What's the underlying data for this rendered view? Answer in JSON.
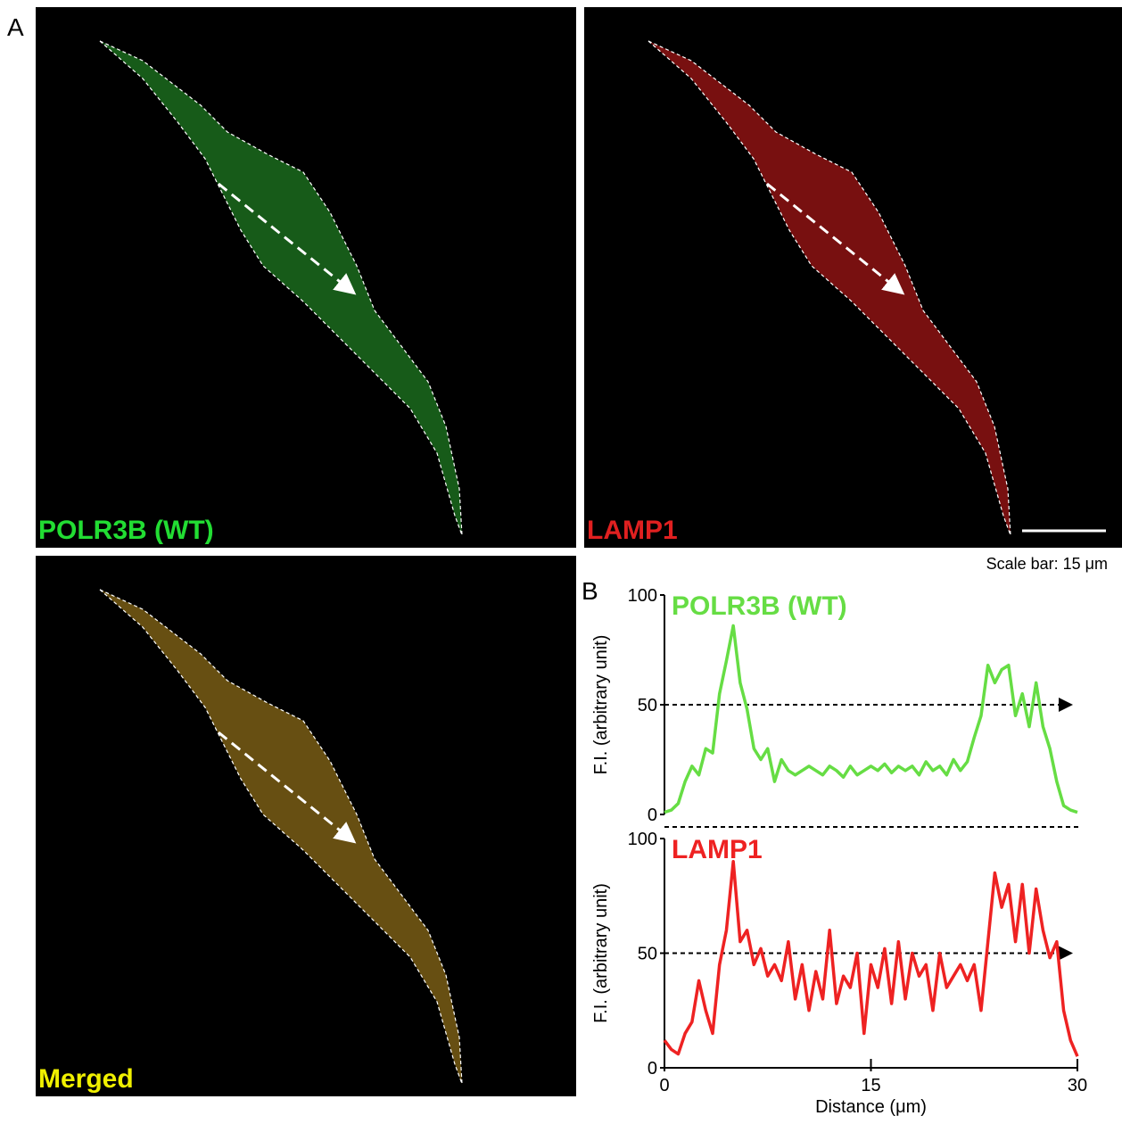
{
  "figure": {
    "panel_a": "A",
    "panel_b": "B",
    "images": [
      {
        "label": "POLR3B (WT)",
        "color": "#22dd33",
        "fill": "#1f7a22"
      },
      {
        "label": "LAMP1",
        "color": "#e02020",
        "fill": "#a01515"
      },
      {
        "label": "Merged",
        "color": "#f0f000",
        "fill": "#8a6a18"
      }
    ],
    "scale_bar": "Scale bar: 15 μm"
  },
  "chart_data": [
    {
      "type": "line",
      "ylabel": "F.I. (arbitrary unit)",
      "x": [
        0,
        0.5,
        1,
        1.5,
        2,
        2.5,
        3,
        3.5,
        4,
        4.5,
        5,
        5.5,
        6,
        6.5,
        7,
        7.5,
        8,
        8.5,
        9,
        9.5,
        10,
        10.5,
        11,
        11.5,
        12,
        12.5,
        13,
        13.5,
        14,
        14.5,
        15,
        15.5,
        16,
        16.5,
        17,
        17.5,
        18,
        18.5,
        19,
        19.5,
        20,
        20.5,
        21,
        21.5,
        22,
        22.5,
        23,
        23.5,
        24,
        24.5,
        25,
        25.5,
        26,
        26.5,
        27,
        27.5,
        28,
        28.5,
        29,
        29.5,
        30
      ],
      "series": [
        {
          "name": "POLR3B (WT)",
          "color": "#66dd44",
          "values": [
            1,
            2,
            5,
            15,
            22,
            18,
            30,
            28,
            55,
            70,
            86,
            60,
            48,
            30,
            25,
            30,
            15,
            25,
            20,
            18,
            20,
            22,
            20,
            18,
            22,
            20,
            17,
            22,
            18,
            20,
            22,
            20,
            23,
            19,
            22,
            20,
            22,
            18,
            24,
            20,
            22,
            18,
            25,
            20,
            24,
            35,
            45,
            68,
            60,
            66,
            68,
            45,
            55,
            40,
            60,
            40,
            30,
            15,
            4,
            2,
            1
          ]
        }
      ],
      "xlim": [
        0,
        30
      ],
      "ylim": [
        0,
        100
      ],
      "yticks": [
        0,
        50,
        100
      ],
      "reference_line": 50
    },
    {
      "type": "line",
      "ylabel": "F.I. (arbitrary unit)",
      "xlabel": "Distance (μm)",
      "x": [
        0,
        0.5,
        1,
        1.5,
        2,
        2.5,
        3,
        3.5,
        4,
        4.5,
        5,
        5.5,
        6,
        6.5,
        7,
        7.5,
        8,
        8.5,
        9,
        9.5,
        10,
        10.5,
        11,
        11.5,
        12,
        12.5,
        13,
        13.5,
        14,
        14.5,
        15,
        15.5,
        16,
        16.5,
        17,
        17.5,
        18,
        18.5,
        19,
        19.5,
        20,
        20.5,
        21,
        21.5,
        22,
        22.5,
        23,
        23.5,
        24,
        24.5,
        25,
        25.5,
        26,
        26.5,
        27,
        27.5,
        28,
        28.5,
        29,
        29.5,
        30
      ],
      "series": [
        {
          "name": "LAMP1",
          "color": "#ee2222",
          "values": [
            12,
            8,
            6,
            15,
            20,
            38,
            25,
            15,
            45,
            60,
            90,
            55,
            60,
            45,
            52,
            40,
            45,
            38,
            55,
            30,
            45,
            25,
            42,
            30,
            60,
            28,
            40,
            35,
            50,
            15,
            45,
            35,
            52,
            28,
            55,
            30,
            50,
            40,
            45,
            25,
            50,
            35,
            40,
            45,
            38,
            45,
            25,
            55,
            85,
            70,
            80,
            55,
            80,
            50,
            78,
            60,
            48,
            55,
            25,
            12,
            5
          ]
        }
      ],
      "xlim": [
        0,
        30
      ],
      "ylim": [
        0,
        100
      ],
      "xticks": [
        0,
        15,
        30
      ],
      "yticks": [
        0,
        50,
        100
      ],
      "reference_line": 50
    }
  ]
}
